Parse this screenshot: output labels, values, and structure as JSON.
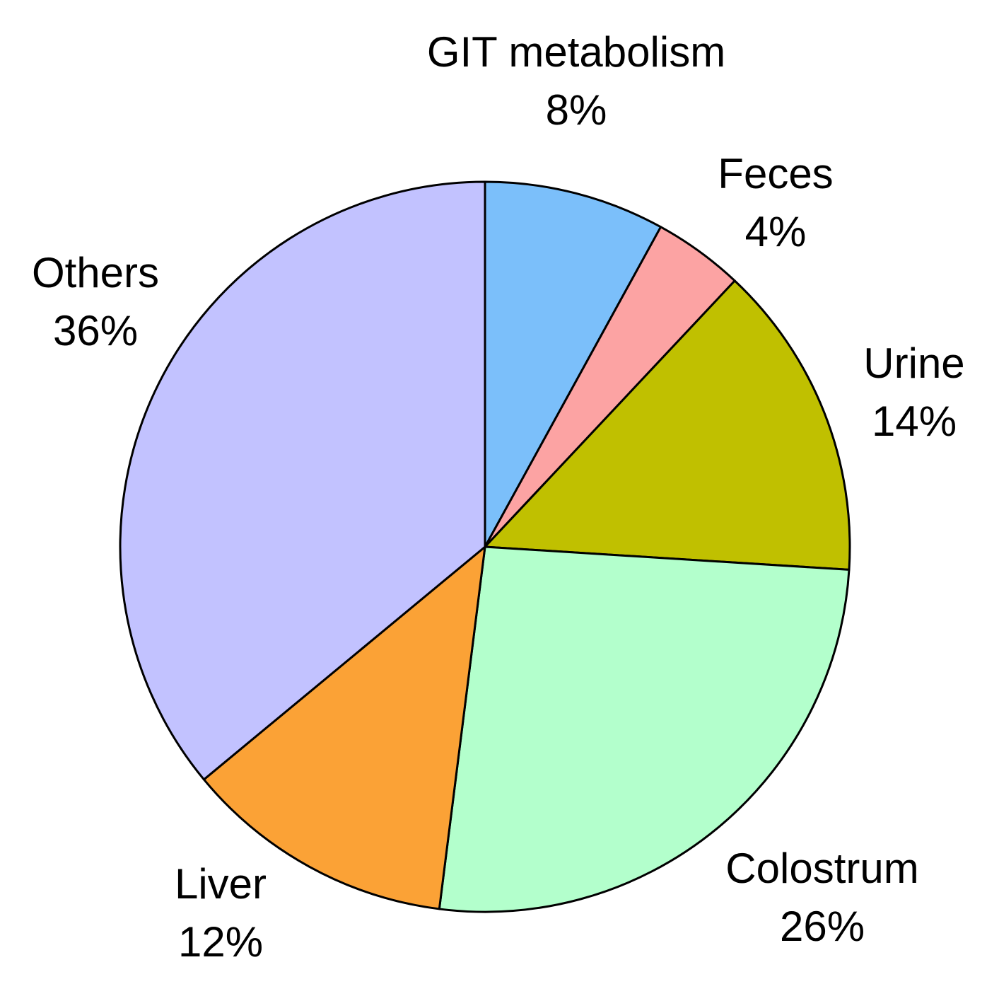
{
  "chart_data": {
    "type": "pie",
    "categories": [
      "GIT metabolism",
      "Feces",
      "Urine",
      "Colostrum",
      "Liver",
      "Others"
    ],
    "values": [
      8,
      4,
      14,
      26,
      12,
      36
    ],
    "value_labels": [
      "8%",
      "4%",
      "14%",
      "26%",
      "12%",
      "36%"
    ],
    "colors": [
      "#7bbffa",
      "#fca3a3",
      "#c0c000",
      "#b3ffcc",
      "#fba236",
      "#c2c2ff"
    ]
  }
}
